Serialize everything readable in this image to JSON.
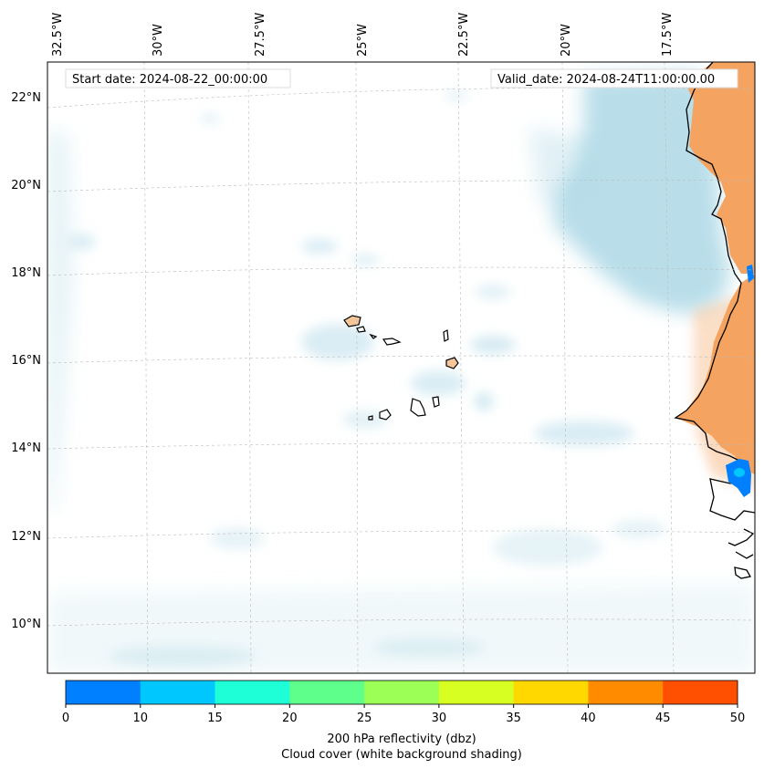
{
  "map": {
    "start_label": "Start date: 2024-08-22_00:00:00",
    "valid_label": "Valid_date: 2024-08-24T11:00:00.00",
    "lon_labels": [
      "32.5°W",
      "30°W",
      "27.5°W",
      "25°W",
      "22.5°W",
      "20°W",
      "17.5°W"
    ],
    "lat_labels": [
      "22°N",
      "20°N",
      "18°N",
      "16°N",
      "14°N",
      "12°N",
      "10°N"
    ],
    "land_color": "#f4a460",
    "coast_color": "#000000",
    "cloud_color": "#add8e6"
  },
  "colorbar": {
    "ticks": [
      "0",
      "10",
      "15",
      "20",
      "25",
      "30",
      "35",
      "40",
      "45",
      "50"
    ],
    "colors": [
      "#0080ff",
      "#00c8ff",
      "#1effd8",
      "#5fff8c",
      "#9cff55",
      "#d8ff22",
      "#ffd800",
      "#ff8c00",
      "#ff4f00"
    ],
    "label_line1": "200 hPa reflectivity (dbz)",
    "label_line2": "Cloud cover (white background shading)"
  }
}
